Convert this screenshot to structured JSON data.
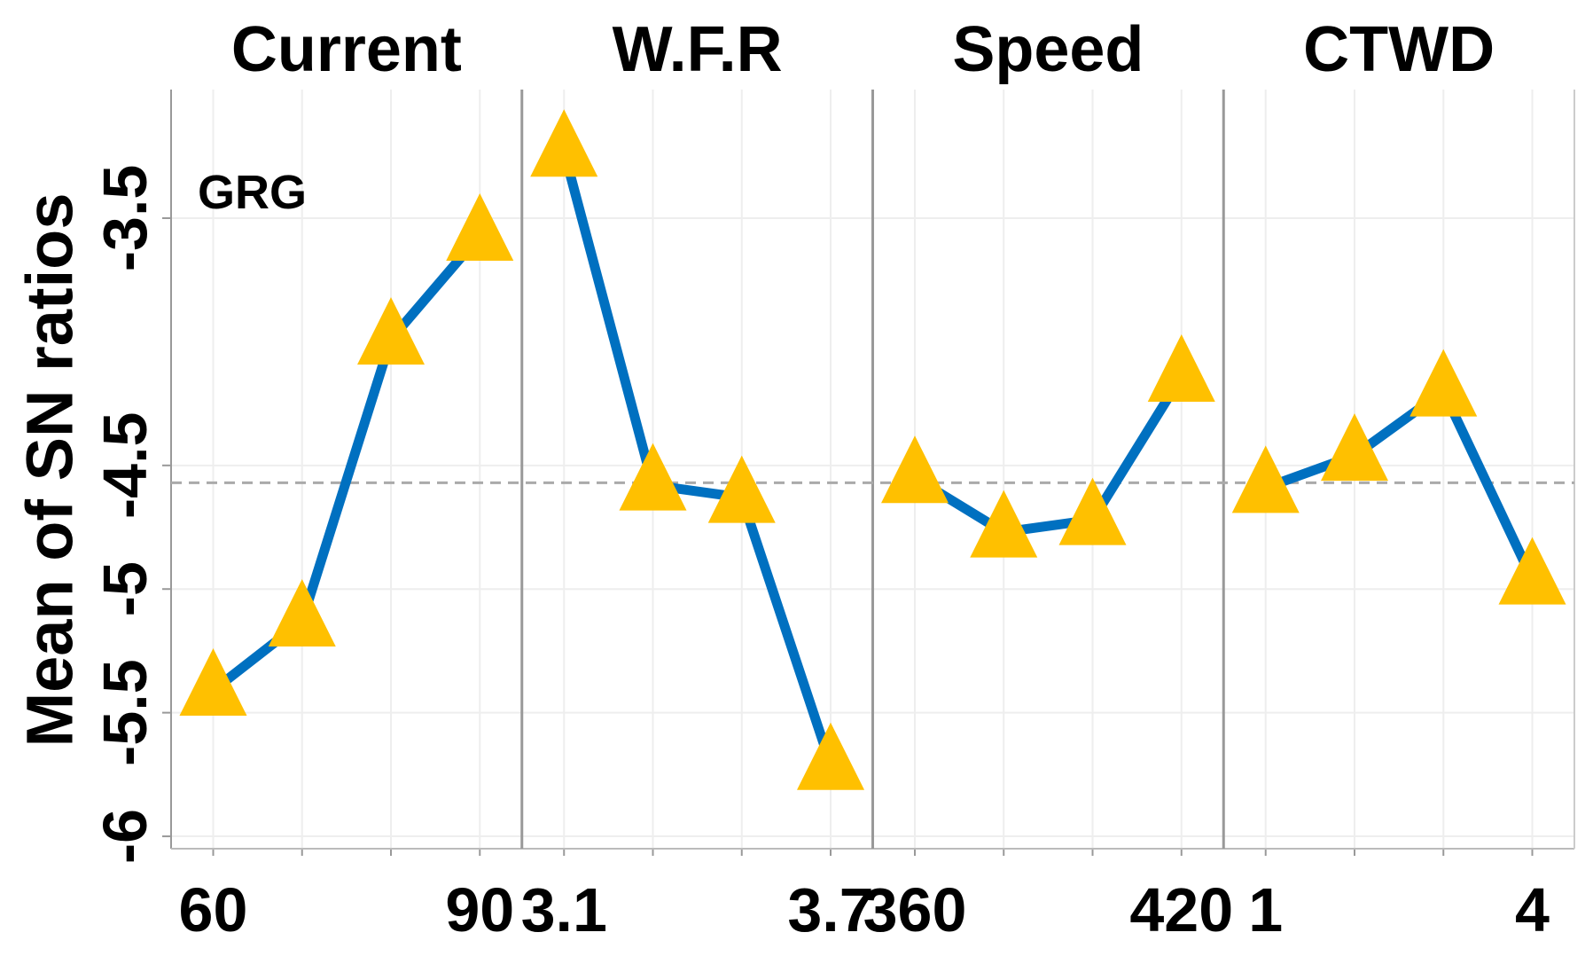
{
  "chart_data": {
    "type": "line",
    "y_label": "Mean of SN ratios",
    "ylim": [
      -6.05,
      -2.98
    ],
    "yticks": [
      -6,
      -5.5,
      -5,
      -4.5,
      -3.5
    ],
    "mean": -4.57,
    "color": "#0070c0",
    "marker_color": "#ffc000",
    "annotation": "GRG",
    "panels": [
      {
        "title": "Current",
        "categories": [
          "60",
          null,
          null,
          "90"
        ],
        "values": [
          -5.41,
          -5.13,
          -3.99,
          -3.57
        ]
      },
      {
        "title": "W.F.R",
        "categories": [
          "3.1",
          null,
          null,
          "3.7"
        ],
        "values": [
          -3.23,
          -4.58,
          -4.63,
          -5.71
        ]
      },
      {
        "title": "Speed",
        "categories": [
          "360",
          null,
          null,
          "420"
        ],
        "values": [
          -4.55,
          -4.77,
          -4.72,
          -4.14
        ]
      },
      {
        "title": "CTWD",
        "categories": [
          "1",
          null,
          null,
          "4"
        ],
        "values": [
          -4.59,
          -4.46,
          -4.2,
          -4.96
        ]
      }
    ]
  }
}
